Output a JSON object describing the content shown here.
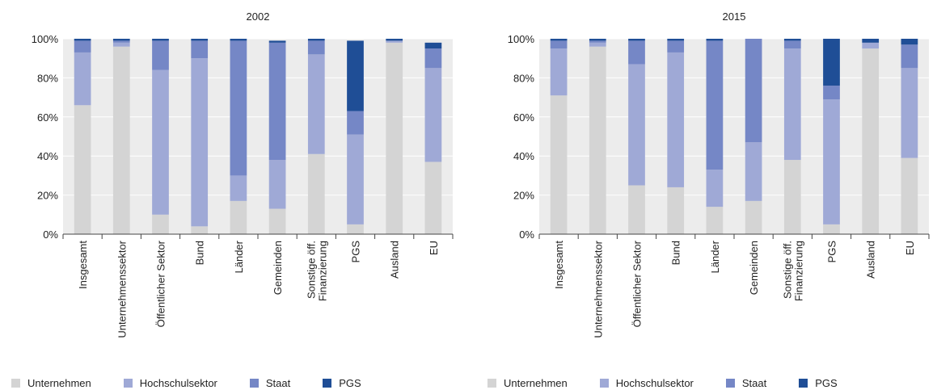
{
  "chart_data": [
    {
      "type": "bar",
      "stacked": true,
      "title": "2002",
      "ylim": [
        0,
        100
      ],
      "yticks": [
        "0%",
        "20%",
        "40%",
        "60%",
        "80%",
        "100%"
      ],
      "categories": [
        "Insgesamt",
        "Unternehmenssektor",
        "Öffentlicher Sektor",
        "Bund",
        "Länder",
        "Gemeinden",
        "Sonstige öff.\nFinanzierung",
        "PGS",
        "Ausland",
        "EU"
      ],
      "series": [
        {
          "name": "Unternehmen",
          "color": "#d4d4d4",
          "values": [
            66,
            96,
            10,
            4,
            17,
            13,
            41,
            5,
            98,
            37
          ]
        },
        {
          "name": "Hochschulsektor",
          "color": "#9fa9d6",
          "values": [
            27,
            2,
            74,
            86,
            13,
            25,
            51,
            46,
            1,
            48
          ]
        },
        {
          "name": "Staat",
          "color": "#7587c6",
          "values": [
            6,
            1,
            15,
            9,
            69,
            60,
            7,
            12,
            0,
            10
          ]
        },
        {
          "name": "PGS",
          "color": "#1f4e96",
          "values": [
            1,
            1,
            1,
            1,
            1,
            1,
            1,
            36,
            1,
            3
          ]
        }
      ]
    },
    {
      "type": "bar",
      "stacked": true,
      "title": "2015",
      "ylim": [
        0,
        100
      ],
      "yticks": [
        "0%",
        "20%",
        "40%",
        "60%",
        "80%",
        "100%"
      ],
      "categories": [
        "Insgesamt",
        "Unternehmenssektor",
        "Öffentlicher Sektor",
        "Bund",
        "Länder",
        "Gemeinden",
        "Sonstige öff.\nFinanzierung",
        "PGS",
        "Ausland",
        "EU"
      ],
      "series": [
        {
          "name": "Unternehmen",
          "color": "#d4d4d4",
          "values": [
            71,
            96,
            25,
            24,
            14,
            17,
            38,
            5,
            95,
            39
          ]
        },
        {
          "name": "Hochschulsektor",
          "color": "#9fa9d6",
          "values": [
            24,
            2,
            62,
            69,
            19,
            30,
            57,
            64,
            3,
            46
          ]
        },
        {
          "name": "Staat",
          "color": "#7587c6",
          "values": [
            4,
            1,
            12,
            6,
            66,
            53,
            4,
            7,
            0,
            12
          ]
        },
        {
          "name": "PGS",
          "color": "#1f4e96",
          "values": [
            1,
            1,
            1,
            1,
            1,
            0,
            1,
            24,
            2,
            3
          ]
        }
      ]
    }
  ]
}
